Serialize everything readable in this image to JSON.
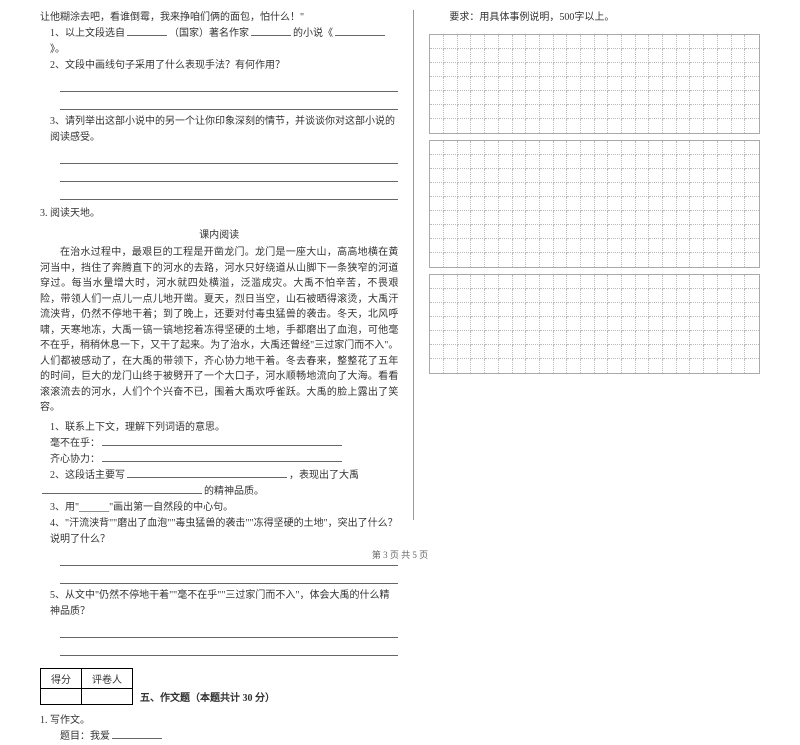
{
  "leftColumn": {
    "contextLine": "让他糊涂去吧，看谁倒霉，我来挣咱们俩的面包，怕什么！\"",
    "q1": "1、以上文段选自",
    "q1b": "（国家）著名作家",
    "q1c": "的小说《",
    "q1d": "》。",
    "q2": "2、文段中画线句子采用了什么表现手法？有何作用？",
    "q3": "3、请列举出这部小说中的另一个让你印象深刻的情节，并谈谈你对这部小说的阅读感受。",
    "readingTitle": "3. 阅读天地。",
    "innerTitle": "课内阅读",
    "passage": "在治水过程中，最艰巨的工程是开凿龙门。龙门是一座大山，高高地横在黄河当中，挡住了奔腾直下的河水的去路，河水只好绕道从山脚下一条狭窄的河道穿过。每当水量增大时，河水就四处横溢，泛滥成灾。大禹不怕辛苦，不畏艰险，带领人们一点儿一点儿地开凿。夏天，烈日当空，山石被晒得滚烫，大禹汗流浃背，仍然不停地干着；到了晚上，还要对付毒虫猛兽的袭击。冬天，北风呼啸，天寒地冻，大禹一镐一镐地挖着冻得坚硬的土地，手都磨出了血泡，可他毫不在乎，稍稍休息一下，又干了起来。为了治水，大禹还曾经\"三过家门而不入\"。人们都被感动了，在大禹的带领下，齐心协力地干着。冬去春来，整整花了五年的时间，巨大的龙门山终于被劈开了一个大口子，河水顺畅地流向了大海。看看滚滚流去的河水，人们个个兴奋不已，围着大禹欢呼雀跃。大禹的脸上露出了笑容。",
    "sub1": "1、联系上下文，理解下列词语的意思。",
    "sub1a": "毫不在乎：",
    "sub1b": "齐心协力：",
    "sub2a": "2、这段话主要写",
    "sub2b": "，表现出了大禹",
    "sub2c": "的精神品质。",
    "sub3": "3、用\"______\"画出第一自然段的中心句。",
    "sub4": "4、\"汗流浃背\"\"磨出了血泡\"\"毒虫猛兽的袭击\"\"冻得坚硬的土地\"，突出了什么？说明了什么？",
    "sub5": "5、从文中\"仍然不停地干着\"\"毫不在乎\"\"三过家门而不入\"，体会大禹的什么精神品质？",
    "scoreHeader1": "得分",
    "scoreHeader2": "评卷人",
    "title5": "五、作文题（本题共计 30 分）",
    "writing1": "1. 写作文。",
    "writingTopic": "题目：我爱"
  },
  "rightColumn": {
    "req": "要求：用具体事例说明，500字以上。"
  },
  "footer": "第 3 页 共 5 页",
  "grid": {
    "cols": 24,
    "blocks": [
      7,
      9,
      7
    ]
  }
}
